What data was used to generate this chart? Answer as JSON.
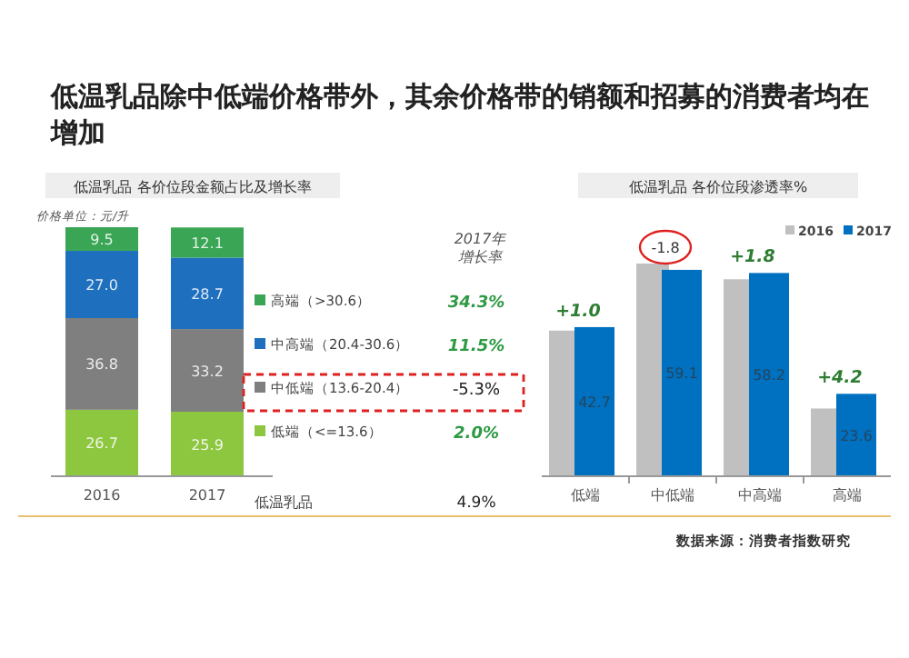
{
  "chart_data": [
    {
      "type": "bar",
      "stacked": true,
      "title": "低温乳品除中低端价格带外，其余价格带的销额和招募的消费者均在增加",
      "subtitle": "低温乳品  各价位段金额占比及增长率",
      "categories": [
        "2016",
        "2017"
      ],
      "legend": "right",
      "series": [
        {
          "name": "低端（<=13.6）",
          "color": "#8dc63f",
          "values": [
            26.7,
            25.9
          ],
          "value_labels": [
            "26.7",
            "25.9"
          ]
        },
        {
          "name": "中低端（13.6-20.4）",
          "color": "#7f7f7f",
          "values": [
            36.8,
            33.2
          ],
          "value_labels": [
            "36.8",
            "33.2"
          ]
        },
        {
          "name": "中高端（20.4-30.6）",
          "color": "#1f6fbf",
          "values": [
            27.0,
            28.7
          ],
          "value_labels": [
            "27.0",
            "28.7"
          ]
        },
        {
          "name": "高端（>30.6）",
          "color": "#3aa655",
          "values": [
            9.5,
            12.1
          ],
          "value_labels": [
            "9.5",
            "12.1"
          ]
        }
      ],
      "annotations": [
        "价格单位：元/升",
        "2017年增长率",
        "34.3%",
        "11.5%",
        "-5.3%",
        "2.0%",
        "低温乳品",
        "4.9%"
      ]
    },
    {
      "type": "bar",
      "title": "低温乳品  各价位段渗透率%",
      "categories": [
        "低端",
        "中低端",
        "中高端",
        "高端"
      ],
      "legend": "top right",
      "series": [
        {
          "name": "2016",
          "color": "#c0c0c0",
          "values": [
            41.7,
            60.9,
            56.4,
            19.4
          ]
        },
        {
          "name": "2017",
          "color": "#0070c0",
          "values": [
            42.7,
            59.1,
            58.2,
            23.6
          ],
          "value_labels": [
            "42.7",
            "59.1",
            "58.2",
            "23.6"
          ]
        }
      ],
      "annotations": [
        {
          "text": "+1.0",
          "x": "低端",
          "y": 42.7
        },
        {
          "text": "-1.8",
          "x": "中低端",
          "y": 60.9
        },
        {
          "text": "+1.8",
          "x": "中高端",
          "y": 58.2
        },
        {
          "text": "+4.2",
          "x": "高端",
          "y": 23.6
        },
        "数据来源：消费者指数研究"
      ]
    }
  ]
}
